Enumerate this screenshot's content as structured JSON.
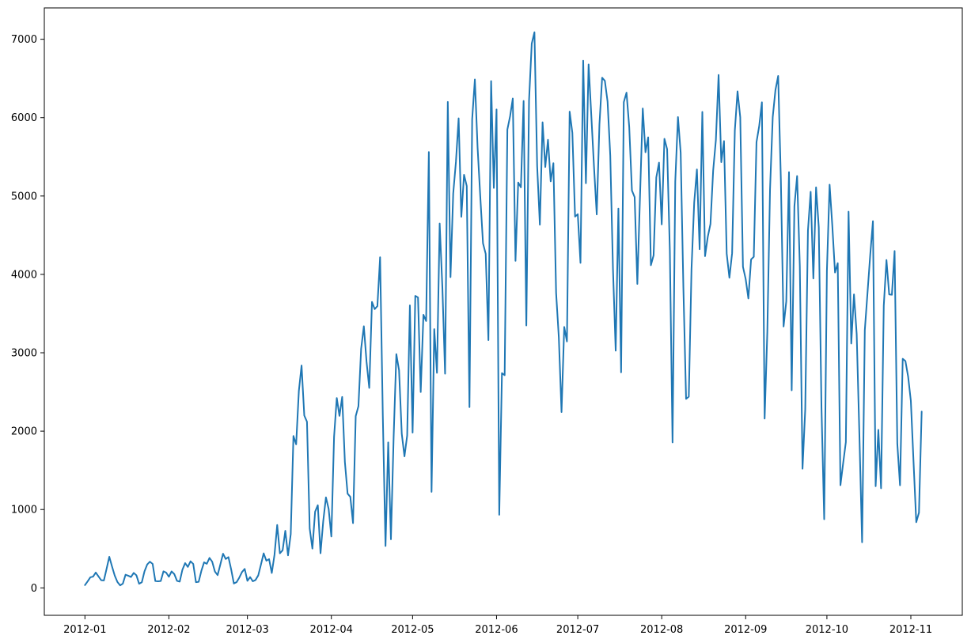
{
  "chart_data": {
    "type": "line",
    "title": "",
    "xlabel": "",
    "ylabel": "",
    "x_start": "2012-01-01",
    "x_end": "2012-11-05",
    "xlim": [
      "2011-12-17",
      "2012-11-20"
    ],
    "ylim": [
      -350,
      7400
    ],
    "grid": false,
    "x_ticks": [
      "2012-01-01",
      "2012-02-01",
      "2012-03-01",
      "2012-04-01",
      "2012-05-01",
      "2012-06-01",
      "2012-07-01",
      "2012-08-01",
      "2012-09-01",
      "2012-10-01",
      "2012-11-01"
    ],
    "x_tick_labels": [
      "2012-01",
      "2012-02",
      "2012-03",
      "2012-04",
      "2012-05",
      "2012-06",
      "2012-07",
      "2012-08",
      "2012-09",
      "2012-10",
      "2012-11"
    ],
    "y_ticks": [
      0,
      1000,
      2000,
      3000,
      4000,
      5000,
      6000,
      7000
    ],
    "y_tick_labels": [
      "0",
      "1000",
      "2000",
      "3000",
      "4000",
      "5000",
      "6000",
      "7000"
    ],
    "series": [
      {
        "color": "#1f77b4",
        "values": [
          35,
          83,
          135,
          144,
          196,
          146,
          98,
          95,
          244,
          397,
          273,
          157,
          75,
          32,
          54,
          168,
          155,
          139,
          191,
          161,
          53,
          71,
          211,
          299,
          334,
          306,
          87,
          84,
          88,
          211,
          195,
          142,
          210,
          176,
          90,
          80,
          232,
          316,
          267,
          339,
          305,
          73,
          77,
          218,
          326,
          307,
          382,
          334,
          208,
          163,
          298,
          436,
          369,
          392,
          236,
          56,
          73,
          131,
          202,
          242,
          90,
          138,
          84,
          101,
          159,
          297,
          441,
          347,
          367,
          190,
          422,
          803,
          441,
          479,
          729,
          415,
          685,
          1938,
          1832,
          2513,
          2837,
          2199,
          2120,
          757,
          501,
          972,
          1055,
          442,
          851,
          1155,
          1008,
          656,
          1928,
          2423,
          2195,
          2436,
          1606,
          1202,
          1162,
          826,
          2192,
          2318,
          3051,
          3338,
          2883,
          2551,
          3649,
          3557,
          3595,
          4219,
          2201,
          535,
          1856,
          620,
          1924,
          2982,
          2777,
          1967,
          1678,
          1944,
          3604,
          1981,
          3726,
          3706,
          2499,
          3484,
          3405,
          5561,
          1226,
          3302,
          2744,
          4649,
          3835,
          2733,
          6201,
          3965,
          5032,
          5434,
          5991,
          4735,
          5271,
          5127,
          2307,
          5980,
          6487,
          5620,
          4991,
          4397,
          4262,
          3162,
          6467,
          5103,
          6105,
          933,
          2740,
          2714,
          5848,
          6017,
          6244,
          4173,
          5172,
          5111,
          6213,
          3349,
          6217,
          6945,
          7090,
          5383,
          4634,
          5940,
          5370,
          5717,
          5187,
          5419,
          3763,
          3196,
          2244,
          3329,
          3144,
          6077,
          5805,
          4737,
          4768,
          4147,
          6727,
          5163,
          6679,
          6026,
          5370,
          4765,
          5912,
          6510,
          6470,
          6206,
          5517,
          4069,
          3027,
          4840,
          2750,
          6198,
          6319,
          5880,
          5070,
          4986,
          3878,
          5013,
          6117,
          5559,
          5749,
          4117,
          4243,
          5237,
          5426,
          4638,
          5730,
          5597,
          4305,
          1856,
          5185,
          6008,
          5554,
          3831,
          2411,
          2440,
          4067,
          4918,
          5339,
          4321,
          6073,
          4233,
          4478,
          4643,
          5326,
          5713,
          6545,
          5432,
          5701,
          4264,
          3957,
          4271,
          5837,
          6336,
          6005,
          4097,
          3942,
          3693,
          4190,
          4225,
          5687,
          5893,
          6195,
          2160,
          3265,
          5085,
          6008,
          6352,
          6532,
          5207,
          3335,
          3656,
          5305,
          2521,
          4869,
          5255,
          4106,
          1521,
          2277,
          4560,
          5054,
          3948,
          5110,
          4600,
          2300,
          876,
          4045,
          5145,
          4621,
          4024,
          4143,
          1310,
          1590,
          1860,
          4800,
          3118,
          3745,
          3238,
          1953,
          582,
          3289,
          3768,
          4250,
          4679,
          1298,
          2016,
          1271,
          3601,
          4183,
          3745,
          3740,
          4298,
          1839,
          1309,
          2923,
          2894,
          2696,
          2386,
          1603,
          838,
          960,
          2250
        ]
      }
    ]
  }
}
